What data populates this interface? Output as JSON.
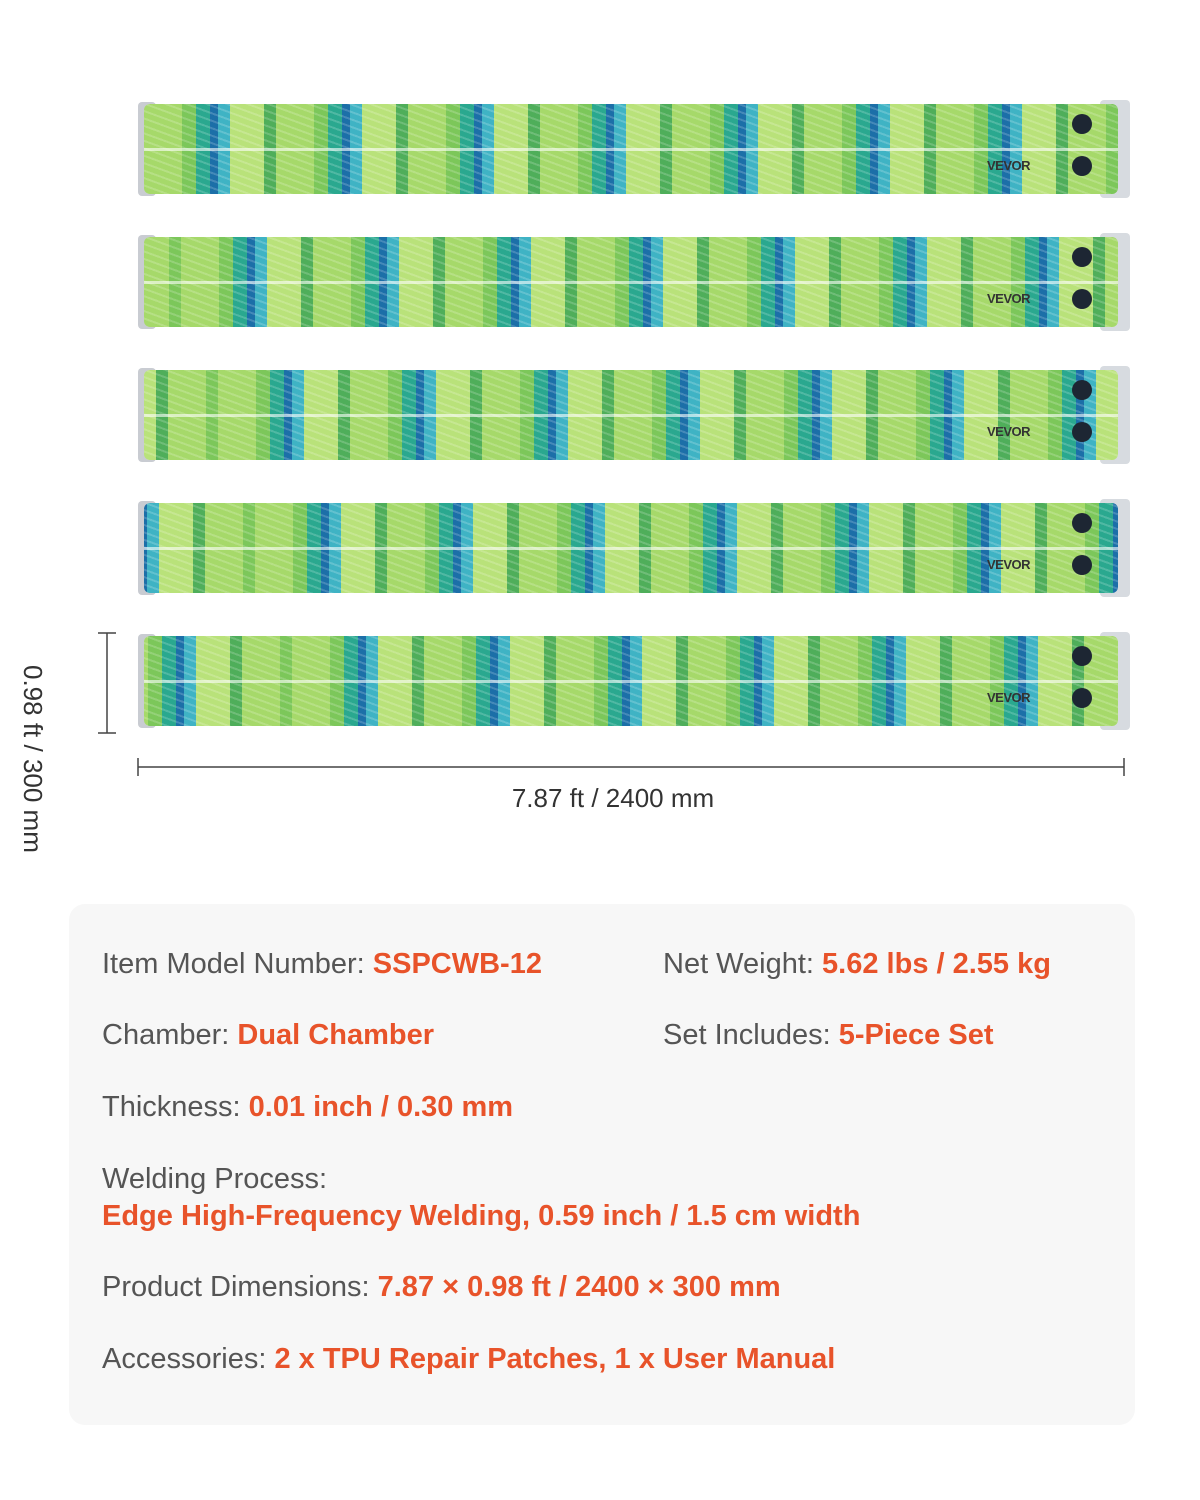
{
  "product": {
    "brand": "VEVOR",
    "tube_count": 5,
    "colors": {
      "accent": "#e8532a",
      "label": "#555555"
    }
  },
  "dimensions": {
    "height": "0.98 ft / 300 mm",
    "width": "7.87 ft / 2400 mm"
  },
  "specs": {
    "model": {
      "label": "Item Model Number:",
      "value": "SSPCWB-12"
    },
    "weight": {
      "label": "Net Weight:",
      "value": "5.62 lbs / 2.55 kg"
    },
    "chamber": {
      "label": "Chamber:",
      "value": "Dual Chamber"
    },
    "set": {
      "label": "Set Includes:",
      "value": "5-Piece Set"
    },
    "thickness": {
      "label": "Thickness:",
      "value": "0.01 inch / 0.30 mm"
    },
    "welding": {
      "label": "Welding Process:",
      "value": "Edge High-Frequency Welding, 0.59 inch / 1.5 cm width"
    },
    "dims": {
      "label": "Product Dimensions:",
      "value": "7.87 × 0.98 ft / 2400 × 300 mm"
    },
    "accessories": {
      "label": "Accessories:",
      "value": "2 x TPU Repair Patches, 1 x User Manual"
    }
  }
}
